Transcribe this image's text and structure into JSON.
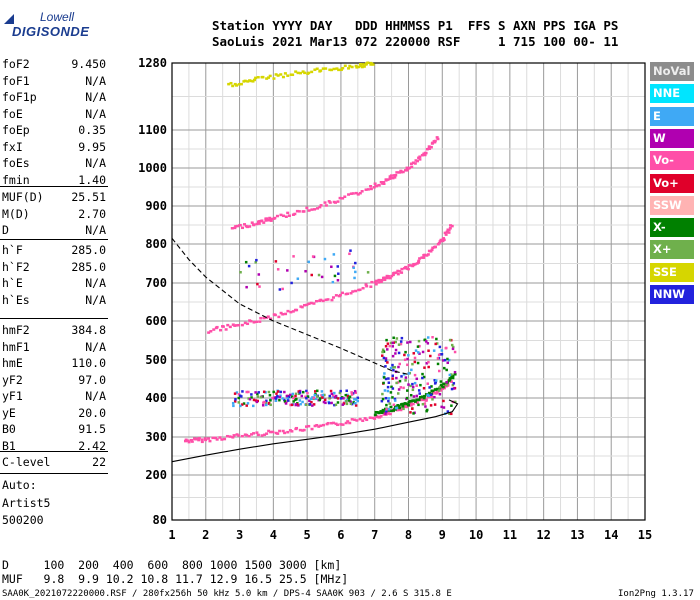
{
  "logo": {
    "line1": "Lowell",
    "line2": "DIGISONDE"
  },
  "header": {
    "line1": "Station YYYY DAY   DDD HHMMSS P1  FFS S AXN PPS IGA PS",
    "line2": "SaoLuis 2021 Mar13 072 220000 RSF     1 715 100 00- 11"
  },
  "params_group1": [
    {
      "name": "foF2",
      "value": "9.450"
    },
    {
      "name": "foF1",
      "value": "N/A"
    },
    {
      "name": "foF1p",
      "value": "N/A"
    },
    {
      "name": "foE",
      "value": "N/A"
    },
    {
      "name": "foEp",
      "value": "0.35"
    },
    {
      "name": "fxI",
      "value": "9.95"
    },
    {
      "name": "foEs",
      "value": "N/A"
    },
    {
      "name": "fmin",
      "value": "1.40"
    }
  ],
  "params_group2": [
    {
      "name": "MUF(D)",
      "value": "25.51"
    },
    {
      "name": "M(D)",
      "value": "2.70"
    },
    {
      "name": "D",
      "value": "N/A"
    }
  ],
  "params_group3": [
    {
      "name": "h`F",
      "value": "285.0"
    },
    {
      "name": "h`F2",
      "value": "285.0"
    },
    {
      "name": "h`E",
      "value": "N/A"
    },
    {
      "name": "h`Es",
      "value": "N/A"
    }
  ],
  "params_group4": [
    {
      "name": "hmF2",
      "value": "384.8"
    },
    {
      "name": "hmF1",
      "value": "N/A"
    },
    {
      "name": "hmE",
      "value": "110.0"
    },
    {
      "name": "yF2",
      "value": "97.0"
    },
    {
      "name": "yF1",
      "value": "N/A"
    },
    {
      "name": "yE",
      "value": "20.0"
    },
    {
      "name": "B0",
      "value": "91.5"
    },
    {
      "name": "B1",
      "value": "2.42"
    }
  ],
  "params_group5": [
    {
      "name": "C-level",
      "value": "22"
    }
  ],
  "autoscaling": {
    "line1": "Auto:",
    "line2": "Artist5",
    "line3": "500200"
  },
  "legend": [
    {
      "label": "NoVal",
      "color": "#8c8c8c"
    },
    {
      "label": "NNE",
      "color": "#00e5ff"
    },
    {
      "label": "E",
      "color": "#3fa9f5"
    },
    {
      "label": "W",
      "color": "#b000b0"
    },
    {
      "label": "Vo-",
      "color": "#ff4fa8"
    },
    {
      "label": "Vo+",
      "color": "#e0002a"
    },
    {
      "label": "SSW",
      "color": "#ffb3b3"
    },
    {
      "label": "X-",
      "color": "#008000"
    },
    {
      "label": "X+",
      "color": "#6fb04c"
    },
    {
      "label": "SSE",
      "color": "#d6d600"
    },
    {
      "label": "NNW",
      "color": "#2222dd"
    }
  ],
  "chart_data": {
    "type": "scatter",
    "x_ticks": [
      "1",
      "2",
      "3",
      "4",
      "5",
      "6",
      "7",
      "8",
      "9",
      "10",
      "11",
      "12",
      "13",
      "14",
      "15"
    ],
    "y_ticks": [
      "80",
      "200",
      "300",
      "400",
      "500",
      "600",
      "700",
      "800",
      "900",
      "1000",
      "1100",
      "1280"
    ],
    "xlim": [
      1,
      15
    ],
    "y_tick_values": [
      80,
      200,
      300,
      400,
      500,
      600,
      700,
      800,
      900,
      1000,
      1100,
      1280
    ],
    "y_scale": "nonlinear (piecewise, as printed)",
    "grid": true,
    "legend_placement": "right",
    "traces": [
      {
        "name": "O-trace (Vo-) F2 1st hop",
        "color": "#ff4fa8",
        "points": [
          [
            1.4,
            290
          ],
          [
            2,
            293
          ],
          [
            3,
            303
          ],
          [
            4,
            312
          ],
          [
            5,
            322
          ],
          [
            6,
            335
          ],
          [
            7,
            352
          ],
          [
            7.5,
            365
          ],
          [
            8,
            380
          ],
          [
            8.5,
            398
          ],
          [
            9,
            425
          ],
          [
            9.3,
            450
          ]
        ]
      },
      {
        "name": "X-trace F2 1st hop",
        "color": "#008000",
        "points": [
          [
            7,
            358
          ],
          [
            7.5,
            372
          ],
          [
            8,
            386
          ],
          [
            8.5,
            405
          ],
          [
            9,
            432
          ],
          [
            9.4,
            462
          ]
        ]
      },
      {
        "name": "O-trace F2 2nd hop",
        "color": "#ff4fa8",
        "points": [
          [
            2.1,
            575
          ],
          [
            3,
            590
          ],
          [
            4,
            612
          ],
          [
            5,
            640
          ],
          [
            6,
            668
          ],
          [
            7,
            700
          ],
          [
            7.5,
            718
          ],
          [
            8,
            740
          ],
          [
            8.5,
            770
          ],
          [
            9,
            810
          ],
          [
            9.3,
            850
          ]
        ]
      },
      {
        "name": "O-trace F2 3rd hop",
        "color": "#ff4fa8",
        "points": [
          [
            2.8,
            842
          ],
          [
            3.5,
            855
          ],
          [
            4,
            868
          ],
          [
            5,
            890
          ],
          [
            6,
            918
          ],
          [
            7,
            952
          ],
          [
            7.5,
            975
          ],
          [
            8,
            1000
          ],
          [
            8.5,
            1040
          ],
          [
            8.9,
            1080
          ]
        ]
      },
      {
        "name": "SSE trace",
        "color": "#d6d600",
        "points": [
          [
            2.7,
            1220
          ],
          [
            3.5,
            1236
          ],
          [
            4.5,
            1250
          ],
          [
            5.5,
            1262
          ],
          [
            6.5,
            1272
          ],
          [
            7,
            1278
          ]
        ]
      }
    ],
    "profile_curve": {
      "name": "electron density profile",
      "points": [
        [
          1,
          235
        ],
        [
          2,
          252
        ],
        [
          3,
          268
        ],
        [
          4,
          282
        ],
        [
          5,
          294
        ],
        [
          6,
          306
        ],
        [
          7,
          320
        ],
        [
          8,
          338
        ],
        [
          8.8,
          352
        ],
        [
          9.3,
          365
        ],
        [
          9.45,
          384.8
        ],
        [
          9.2,
          395
        ]
      ]
    },
    "muf_curve": {
      "name": "MUF curve",
      "points": [
        [
          1,
          815
        ],
        [
          1.5,
          760
        ],
        [
          2,
          715
        ],
        [
          3,
          645
        ],
        [
          4,
          600
        ],
        [
          5,
          565
        ],
        [
          6,
          530
        ],
        [
          7,
          492
        ],
        [
          7.5,
          472
        ],
        [
          8,
          462
        ]
      ]
    }
  },
  "footer": {
    "line1": "D     100  200  400  600  800 1000 1500 3000 [km]",
    "line2": "MUF   9.8  9.9 10.2 10.8 11.7 12.9 16.5 25.5 [MHz]",
    "line3": "SAA0K_2021072220000.RSF / 280fx256h 50 kHz 5.0 km / DPS-4 SAA0K 903 / 2.6 S 315.8 E",
    "version": "Ion2Png 1.3.17"
  }
}
